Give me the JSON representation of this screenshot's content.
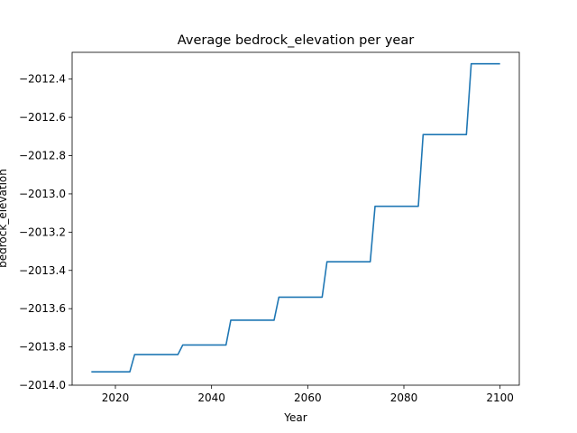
{
  "chart_data": {
    "type": "line",
    "title": "Average bedrock_elevation per year",
    "xlabel": "Year",
    "ylabel": "bedrock_elevation",
    "xlim": [
      2011,
      2104
    ],
    "ylim": [
      -2014.0,
      -2012.26
    ],
    "x_ticks": [
      2020,
      2040,
      2060,
      2080,
      2100
    ],
    "y_ticks": [
      -2014.0,
      -2013.8,
      -2013.6,
      -2013.4,
      -2013.2,
      -2013.0,
      -2012.8,
      -2012.6,
      -2012.4
    ],
    "x_tick_labels": [
      "2020",
      "2040",
      "2060",
      "2080",
      "2100"
    ],
    "y_tick_labels": [
      "−2014.0",
      "−2013.8",
      "−2013.6",
      "−2013.4",
      "−2013.2",
      "−2013.0",
      "−2012.8",
      "−2012.6",
      "−2012.4"
    ],
    "grid": false,
    "series": [
      {
        "color": "#1f77b4",
        "x": [
          2015,
          2016,
          2017,
          2018,
          2019,
          2020,
          2021,
          2022,
          2023,
          2024,
          2025,
          2026,
          2027,
          2028,
          2029,
          2030,
          2031,
          2032,
          2033,
          2034,
          2035,
          2036,
          2037,
          2038,
          2039,
          2040,
          2041,
          2042,
          2043,
          2044,
          2045,
          2046,
          2047,
          2048,
          2049,
          2050,
          2051,
          2052,
          2053,
          2054,
          2055,
          2056,
          2057,
          2058,
          2059,
          2060,
          2061,
          2062,
          2063,
          2064,
          2065,
          2066,
          2067,
          2068,
          2069,
          2070,
          2071,
          2072,
          2073,
          2074,
          2075,
          2076,
          2077,
          2078,
          2079,
          2080,
          2081,
          2082,
          2083,
          2084,
          2085,
          2086,
          2087,
          2088,
          2089,
          2090,
          2091,
          2092,
          2093,
          2094,
          2095,
          2096,
          2097,
          2098,
          2099,
          2100
        ],
        "y": [
          -2013.93,
          -2013.93,
          -2013.93,
          -2013.93,
          -2013.93,
          -2013.93,
          -2013.93,
          -2013.93,
          -2013.93,
          -2013.84,
          -2013.84,
          -2013.84,
          -2013.84,
          -2013.84,
          -2013.84,
          -2013.84,
          -2013.84,
          -2013.84,
          -2013.84,
          -2013.79,
          -2013.79,
          -2013.79,
          -2013.79,
          -2013.79,
          -2013.79,
          -2013.79,
          -2013.79,
          -2013.79,
          -2013.79,
          -2013.66,
          -2013.66,
          -2013.66,
          -2013.66,
          -2013.66,
          -2013.66,
          -2013.66,
          -2013.66,
          -2013.66,
          -2013.66,
          -2013.54,
          -2013.54,
          -2013.54,
          -2013.54,
          -2013.54,
          -2013.54,
          -2013.54,
          -2013.54,
          -2013.54,
          -2013.54,
          -2013.355,
          -2013.355,
          -2013.355,
          -2013.355,
          -2013.355,
          -2013.355,
          -2013.355,
          -2013.355,
          -2013.355,
          -2013.355,
          -2013.065,
          -2013.065,
          -2013.065,
          -2013.065,
          -2013.065,
          -2013.065,
          -2013.065,
          -2013.065,
          -2013.065,
          -2013.065,
          -2012.69,
          -2012.69,
          -2012.69,
          -2012.69,
          -2012.69,
          -2012.69,
          -2012.69,
          -2012.69,
          -2012.69,
          -2012.69,
          -2012.32,
          -2012.32,
          -2012.32,
          -2012.32,
          -2012.32,
          -2012.32,
          -2012.32
        ]
      }
    ]
  }
}
